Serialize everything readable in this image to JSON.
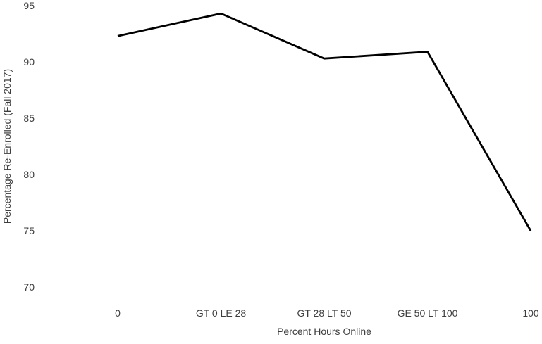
{
  "chart_data": {
    "type": "line",
    "title": "",
    "xlabel": "Percent Hours Online",
    "ylabel": "Percentage Re-Enrolled (Fall 2017)",
    "categories": [
      "0",
      "GT 0 LE 28",
      "GT 28 LT 50",
      "GE 50 LT 100",
      "100"
    ],
    "series": [
      {
        "name": "percentage-re-enrolled",
        "values": [
          92.3,
          94.3,
          90.3,
          90.9,
          75.0
        ]
      }
    ],
    "yticks": [
      95,
      90,
      85,
      80,
      75,
      70
    ],
    "ylim": [
      68.5,
      95.5
    ],
    "grid": false,
    "legend": "none",
    "axis_lines": false,
    "line_color": "#000000",
    "line_width": 2.8,
    "text_color": "#3d3d3d",
    "background": "#ffffff"
  }
}
